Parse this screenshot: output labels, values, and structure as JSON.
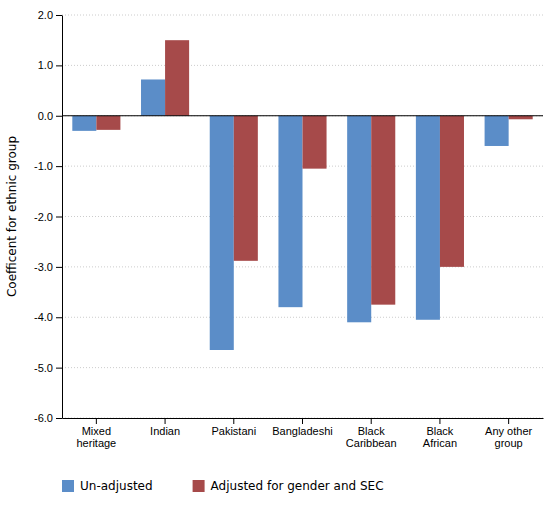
{
  "chart_data": {
    "type": "bar",
    "categories": [
      "Mixed\nheritage",
      "Indian",
      "Pakistani",
      "Bangladeshi",
      "Black\nCaribbean",
      "Black\nAfrican",
      "Any other\ngroup"
    ],
    "series": [
      {
        "name": "Un-adjusted",
        "color": "#5B8DC8",
        "values": [
          -0.3,
          0.72,
          -4.65,
          -3.8,
          -4.1,
          -4.05,
          -0.6
        ]
      },
      {
        "name": "Adjusted for gender and SEC",
        "color": "#A64A4A",
        "values": [
          -0.28,
          1.5,
          -2.88,
          -1.05,
          -3.75,
          -3.0,
          -0.07
        ]
      }
    ],
    "ylabel": "Coefficent for ethnic group",
    "ylim": [
      -6.0,
      2.0
    ],
    "yticks": [
      {
        "value": -6.0,
        "label": "-6.0"
      },
      {
        "value": -5.0,
        "label": "-5.0"
      },
      {
        "value": -4.0,
        "label": "-4.0"
      },
      {
        "value": -3.0,
        "label": "-3.0"
      },
      {
        "value": -2.0,
        "label": "-2.0"
      },
      {
        "value": -1.0,
        "label": "-1.0"
      },
      {
        "value": 0.0,
        "label": "0.0"
      },
      {
        "value": 1.0,
        "label": "1.0"
      },
      {
        "value": 2.0,
        "label": "2.0"
      }
    ],
    "grid": true,
    "legend": "bottom"
  }
}
